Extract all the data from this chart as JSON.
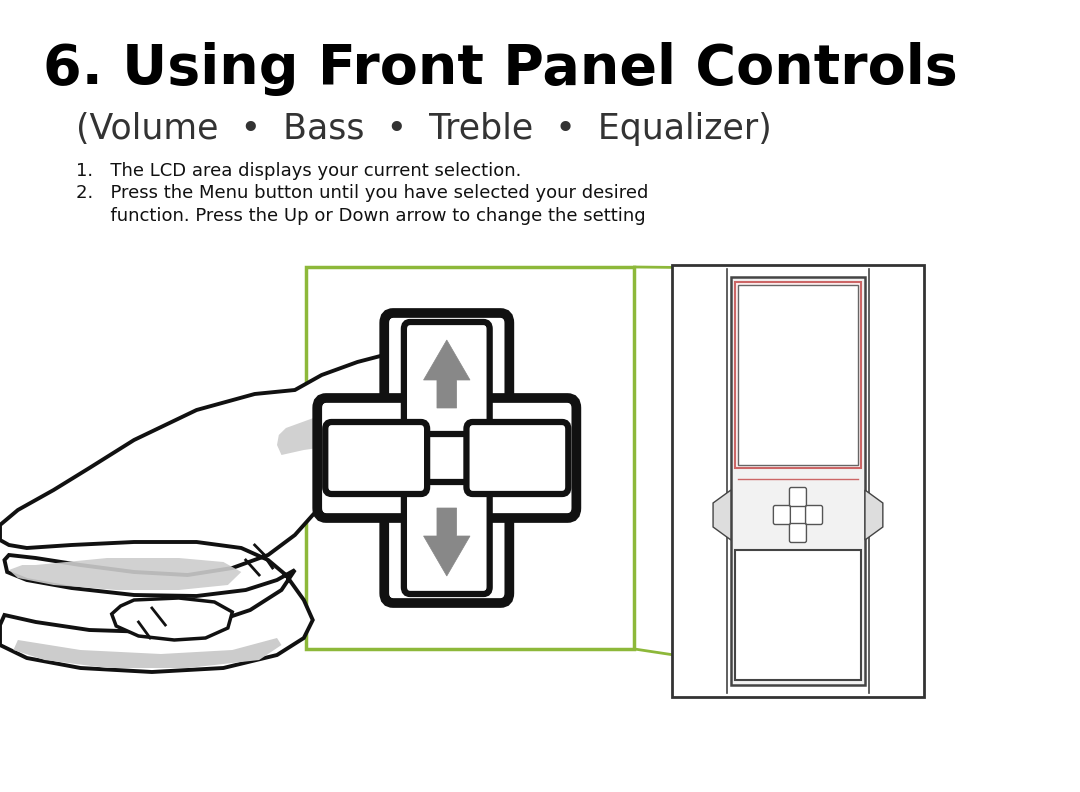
{
  "title_bold": "6. Using Front Panel Controls",
  "title_sub": "(Volume  •  Bass  •  Treble  •  Equalizer)",
  "bullet1": "1.   The LCD area displays your current selection.",
  "bullet2_line1": "2.   Press the Menu button until you have selected your desired",
  "bullet2_line2": "      function. Press the Up or Down arrow to change the setting",
  "bg_color": "#ffffff",
  "title_color": "#000000",
  "sub_color": "#333333",
  "bullet_color": "#111111",
  "green_color": "#8db83a",
  "thick_outline": "#111111",
  "medium_outline": "#444444",
  "arrow_fill": "#888888",
  "hand_fill": "#ffffff",
  "hand_shadow": "#cccccc",
  "hand_outline": "#111111",
  "lcd_accent": "#cc6666"
}
